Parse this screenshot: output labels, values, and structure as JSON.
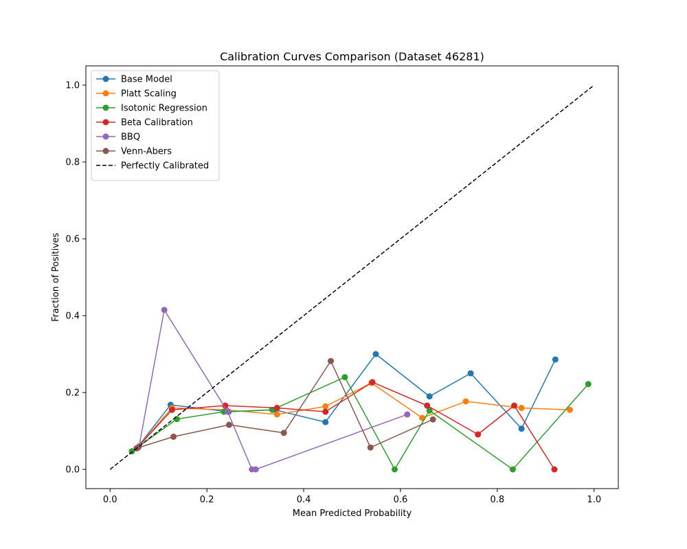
{
  "chart_data": {
    "type": "line",
    "title": "Calibration Curves Comparison (Dataset 46281)",
    "xlabel": "Mean Predicted Probability",
    "ylabel": "Fraction of Positives",
    "xlim": [
      -0.05,
      1.05
    ],
    "ylim": [
      -0.05,
      1.05
    ],
    "xticks": [
      0.0,
      0.2,
      0.4,
      0.6,
      0.8,
      1.0
    ],
    "yticks": [
      0.0,
      0.2,
      0.4,
      0.6,
      0.8,
      1.0
    ],
    "xtick_labels": [
      "0.0",
      "0.2",
      "0.4",
      "0.6",
      "0.8",
      "1.0"
    ],
    "ytick_labels": [
      "0.0",
      "0.2",
      "0.4",
      "0.6",
      "0.8",
      "1.0"
    ],
    "grid": false,
    "legend_position": "top-left",
    "series": [
      {
        "name": "Base Model",
        "color": "#1f77b4",
        "marker": "circle",
        "x": [
          0.055,
          0.125,
          0.245,
          0.34,
          0.445,
          0.549,
          0.66,
          0.745,
          0.85,
          0.92
        ],
        "y": [
          0.055,
          0.168,
          0.15,
          0.155,
          0.123,
          0.3,
          0.19,
          0.25,
          0.106,
          0.286
        ]
      },
      {
        "name": "Platt Scaling",
        "color": "#ff7f0e",
        "marker": "circle",
        "x": [
          0.055,
          0.128,
          0.24,
          0.345,
          0.445,
          0.54,
          0.645,
          0.735,
          0.85,
          0.95
        ],
        "y": [
          0.055,
          0.16,
          0.155,
          0.143,
          0.164,
          0.225,
          0.134,
          0.177,
          0.16,
          0.155
        ]
      },
      {
        "name": "Isotonic Regression",
        "color": "#2ca02c",
        "marker": "circle",
        "x": [
          0.045,
          0.138,
          0.235,
          0.335,
          0.485,
          0.588,
          0.66,
          0.832,
          0.988
        ],
        "y": [
          0.047,
          0.131,
          0.15,
          0.155,
          0.24,
          0.0,
          0.153,
          0.0,
          0.222
        ]
      },
      {
        "name": "Beta Calibration",
        "color": "#d62728",
        "marker": "circle",
        "x": [
          0.055,
          0.128,
          0.238,
          0.345,
          0.445,
          0.542,
          0.655,
          0.76,
          0.835,
          0.918
        ],
        "y": [
          0.055,
          0.155,
          0.166,
          0.16,
          0.15,
          0.227,
          0.166,
          0.091,
          0.166,
          0.0
        ]
      },
      {
        "name": "BBQ",
        "color": "#9467bd",
        "marker": "circle",
        "x": [
          0.06,
          0.112,
          0.243,
          0.293,
          0.301,
          0.614
        ],
        "y": [
          0.06,
          0.415,
          0.15,
          0.0,
          0.0,
          0.143
        ]
      },
      {
        "name": "Venn-Abers",
        "color": "#8c564b",
        "marker": "circle",
        "x": [
          0.057,
          0.131,
          0.246,
          0.359,
          0.456,
          0.538,
          0.667
        ],
        "y": [
          0.056,
          0.085,
          0.116,
          0.095,
          0.282,
          0.057,
          0.13
        ]
      },
      {
        "name": "Perfectly Calibrated",
        "color": "#000000",
        "marker": "none",
        "dashed": true,
        "x": [
          0.0,
          1.0
        ],
        "y": [
          0.0,
          1.0
        ]
      }
    ]
  }
}
